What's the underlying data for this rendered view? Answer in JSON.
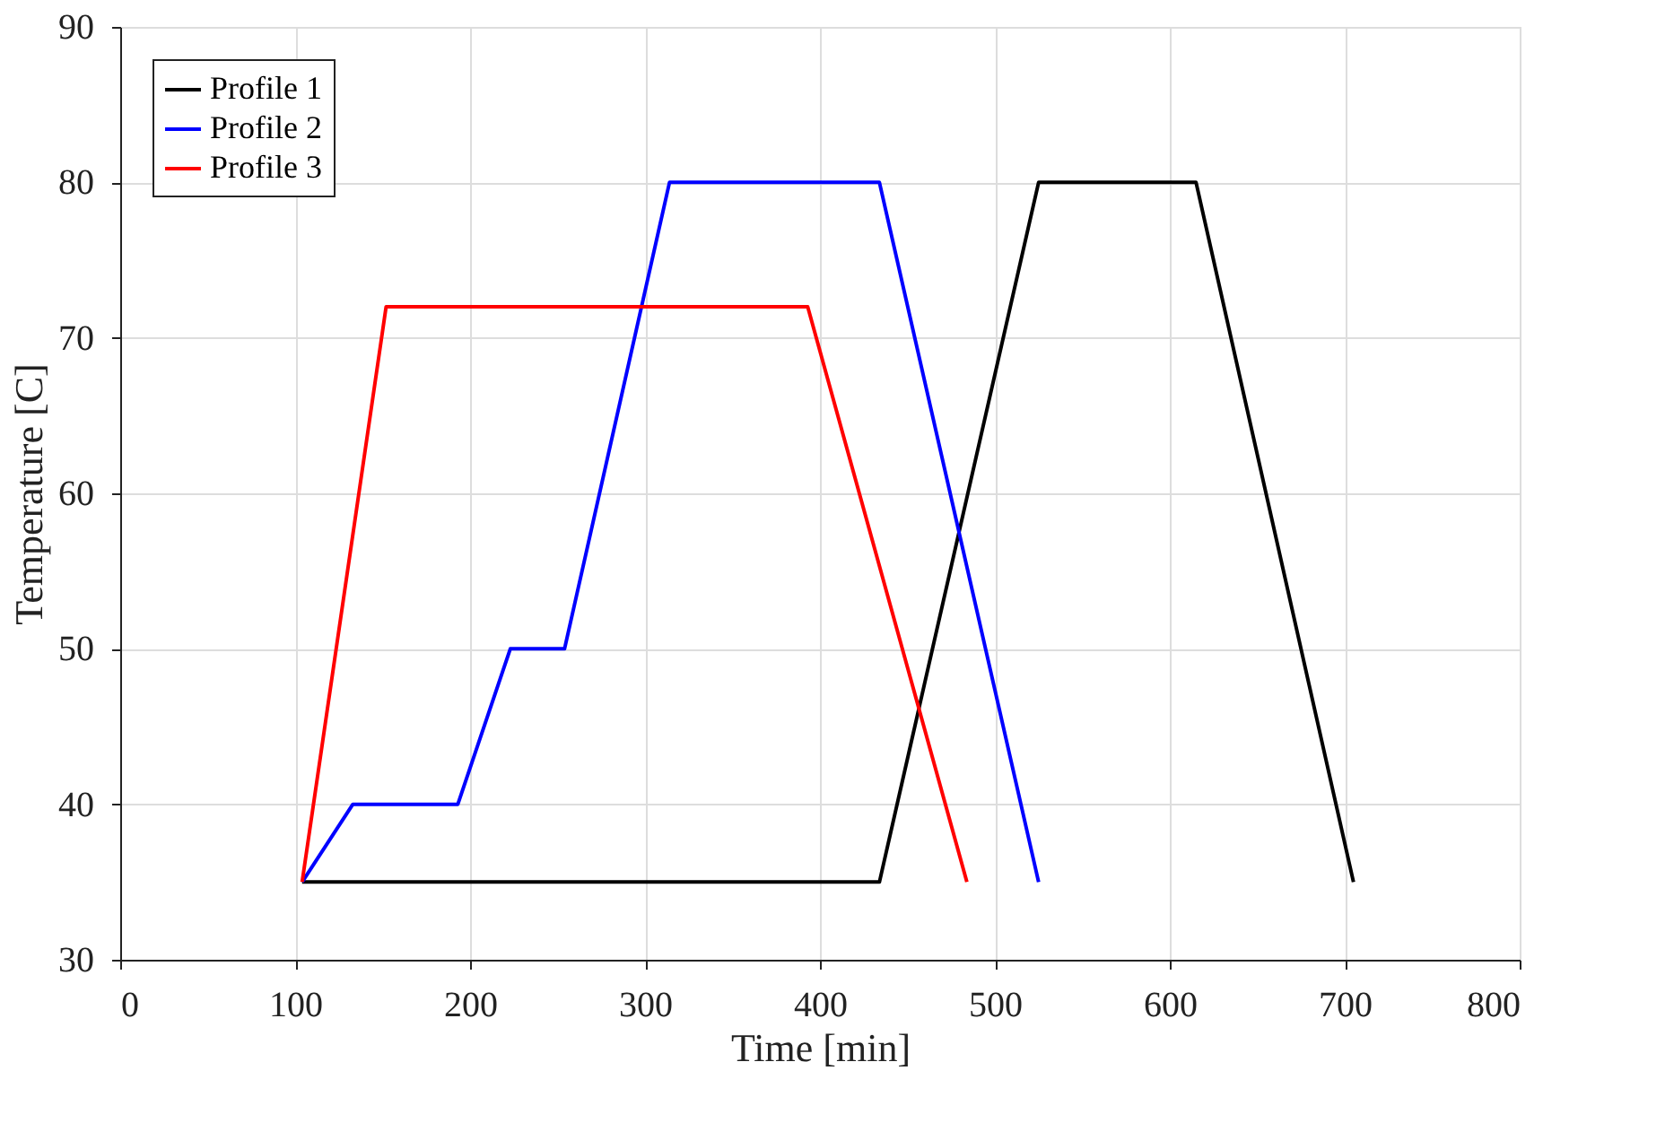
{
  "chart_data": {
    "type": "line",
    "xlabel": "Time [min]",
    "ylabel": "Temperature [C]",
    "xlim": [
      0,
      800
    ],
    "xticks": [
      0,
      100,
      200,
      300,
      400,
      500,
      600,
      700,
      800
    ],
    "ylim": [
      30,
      90
    ],
    "yticks": [
      30,
      40,
      50,
      60,
      70,
      80,
      90
    ],
    "grid": true,
    "legend": "top left",
    "marker": "none",
    "line_style": "solid",
    "series": [
      {
        "name": "Profile 1",
        "color": "#000000",
        "x": [
          104,
          434,
          525,
          615,
          705
        ],
        "values": [
          35,
          35,
          80,
          80,
          35
        ]
      },
      {
        "name": "Profile 2",
        "color": "#0000ff",
        "x": [
          104,
          133,
          193,
          223,
          254,
          314,
          434,
          525
        ],
        "values": [
          35,
          40,
          40,
          50,
          50,
          80,
          80,
          35
        ]
      },
      {
        "name": "Profile 3",
        "color": "#ff0000",
        "x": [
          104,
          152,
          393,
          484
        ],
        "values": [
          35,
          72,
          72,
          35
        ]
      }
    ]
  }
}
